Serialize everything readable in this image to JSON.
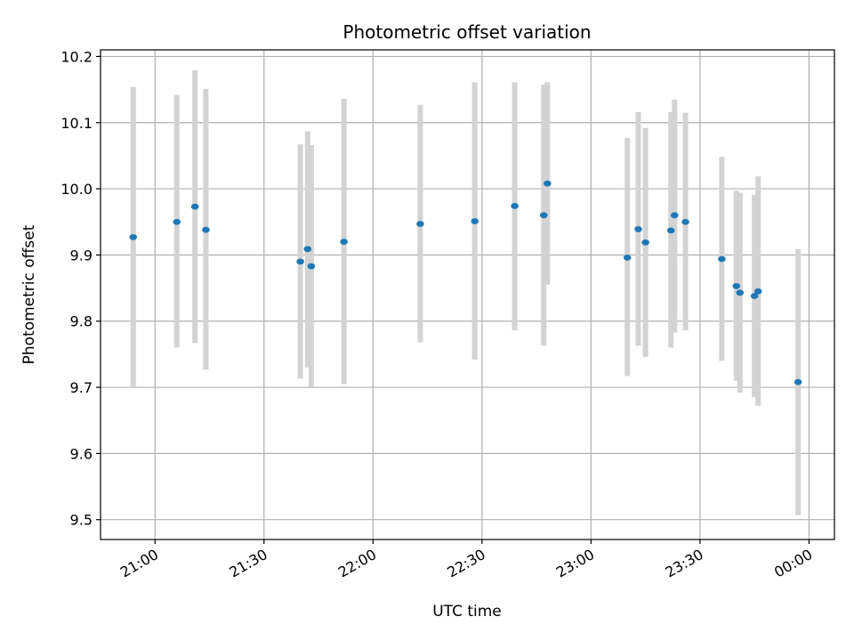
{
  "chart_data": {
    "type": "scatter",
    "title": "Photometric offset variation",
    "xlabel": "UTC time",
    "ylabel": "Photometric offset",
    "x_unit": "UTC time (HH:MM), 00:00 is the following day",
    "xlim": [
      "20:45",
      "00:07"
    ],
    "ylim": [
      9.47,
      10.21
    ],
    "x_ticks": [
      "21:00",
      "21:30",
      "22:00",
      "22:30",
      "23:00",
      "23:30",
      "00:00"
    ],
    "y_ticks": [
      "9.5",
      "9.6",
      "9.7",
      "9.8",
      "9.9",
      "10.0",
      "10.1",
      "10.2"
    ],
    "grid": true,
    "marker_color": "#1f77b4",
    "errorbar_color": "#d3d3d3",
    "points": [
      {
        "x": "20:54",
        "y": 9.927,
        "ylo": 9.7,
        "yhi": 10.154
      },
      {
        "x": "21:06",
        "y": 9.95,
        "ylo": 9.76,
        "yhi": 10.142
      },
      {
        "x": "21:11",
        "y": 9.973,
        "ylo": 9.767,
        "yhi": 10.179
      },
      {
        "x": "21:14",
        "y": 9.938,
        "ylo": 9.727,
        "yhi": 10.151
      },
      {
        "x": "21:40",
        "y": 9.89,
        "ylo": 9.713,
        "yhi": 10.067
      },
      {
        "x": "21:42",
        "y": 9.909,
        "ylo": 9.73,
        "yhi": 10.087
      },
      {
        "x": "21:43",
        "y": 9.883,
        "ylo": 9.7,
        "yhi": 10.066
      },
      {
        "x": "21:52",
        "y": 9.92,
        "ylo": 9.705,
        "yhi": 10.136
      },
      {
        "x": "22:13",
        "y": 9.947,
        "ylo": 9.768,
        "yhi": 10.127
      },
      {
        "x": "22:28",
        "y": 9.951,
        "ylo": 9.742,
        "yhi": 10.161
      },
      {
        "x": "22:39",
        "y": 9.974,
        "ylo": 9.786,
        "yhi": 10.161
      },
      {
        "x": "22:47",
        "y": 9.96,
        "ylo": 9.763,
        "yhi": 10.157
      },
      {
        "x": "22:48",
        "y": 10.008,
        "ylo": 9.855,
        "yhi": 10.161
      },
      {
        "x": "23:10",
        "y": 9.896,
        "ylo": 9.717,
        "yhi": 10.077
      },
      {
        "x": "23:13",
        "y": 9.939,
        "ylo": 9.763,
        "yhi": 10.116
      },
      {
        "x": "23:15",
        "y": 9.919,
        "ylo": 9.746,
        "yhi": 10.092
      },
      {
        "x": "23:22",
        "y": 9.937,
        "ylo": 9.76,
        "yhi": 10.116
      },
      {
        "x": "23:23",
        "y": 9.96,
        "ylo": 9.783,
        "yhi": 10.135
      },
      {
        "x": "23:26",
        "y": 9.95,
        "ylo": 9.786,
        "yhi": 10.115
      },
      {
        "x": "23:36",
        "y": 9.894,
        "ylo": 9.74,
        "yhi": 10.048
      },
      {
        "x": "23:40",
        "y": 9.853,
        "ylo": 9.71,
        "yhi": 9.997
      },
      {
        "x": "23:41",
        "y": 9.843,
        "ylo": 9.692,
        "yhi": 9.994
      },
      {
        "x": "23:45",
        "y": 9.838,
        "ylo": 9.685,
        "yhi": 9.991
      },
      {
        "x": "23:46",
        "y": 9.845,
        "ylo": 9.672,
        "yhi": 10.019
      },
      {
        "x": "23:57",
        "y": 9.708,
        "ylo": 9.507,
        "yhi": 9.909
      }
    ]
  }
}
